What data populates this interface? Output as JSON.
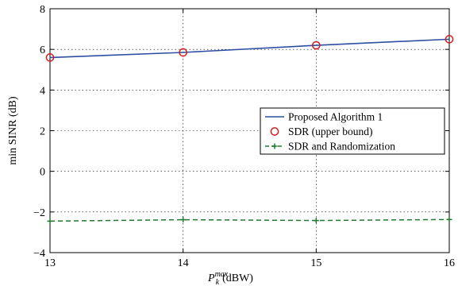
{
  "chart_data": {
    "type": "line",
    "title": "",
    "xlabel": {
      "base": "P",
      "sub": "k",
      "sup": "max",
      "unit": "(dBW)"
    },
    "ylabel": "min SINR (dB)",
    "xlim": [
      13,
      16
    ],
    "ylim": [
      -4,
      8
    ],
    "xticks": [
      "13",
      "14",
      "15",
      "16"
    ],
    "yticks": [
      "−4",
      "−2",
      "0",
      "2",
      "4",
      "6",
      "8"
    ],
    "grid": true,
    "legend_position": "right",
    "x": [
      13,
      14,
      15,
      16
    ],
    "series": [
      {
        "name": "Proposed Algorithm 1",
        "style": "solid-line",
        "color": "#2f4ea2",
        "values": [
          5.6,
          5.85,
          6.2,
          6.5
        ]
      },
      {
        "name": "SDR (upper bound)",
        "style": "circle-markers",
        "color": "#d42020",
        "values": [
          5.6,
          5.85,
          6.2,
          6.5
        ]
      },
      {
        "name": "SDR and Randomization",
        "style": "dashed-line-plus",
        "color": "#1f7a2e",
        "values": [
          -2.45,
          -2.38,
          -2.42,
          -2.37
        ]
      }
    ]
  }
}
